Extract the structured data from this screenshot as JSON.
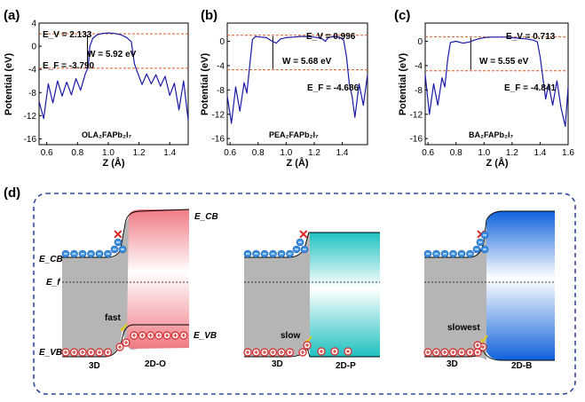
{
  "chart_data": [
    {
      "type": "line",
      "panel": "(a)",
      "xlabel": "Z (Å)",
      "ylabel": "Potential (eV)",
      "xlim": [
        0.55,
        1.52
      ],
      "ylim": [
        -17,
        4
      ],
      "xticks": [
        "0.6",
        "0.8",
        "1.0",
        "1.2",
        "1.4"
      ],
      "yticks": [
        "4",
        "0",
        "-4",
        "-8",
        "-12",
        "-16"
      ],
      "material": "OLA₂FAPb₂I₇",
      "ev_label": "E_V = 2.133",
      "ef_label": "E_F = -3.790",
      "w_label": "W = 5.92 eV",
      "ev": 2.133,
      "ef": -3.79,
      "w_x": 0.865,
      "x": [
        0.55,
        0.58,
        0.61,
        0.64,
        0.67,
        0.7,
        0.73,
        0.76,
        0.79,
        0.82,
        0.85,
        0.87,
        0.88,
        0.9,
        0.93,
        0.96,
        1.0,
        1.04,
        1.08,
        1.12,
        1.15,
        1.17,
        1.19,
        1.22,
        1.25,
        1.28,
        1.31,
        1.34,
        1.37,
        1.4,
        1.43,
        1.46,
        1.49,
        1.52
      ],
      "y": [
        -9.5,
        -12.5,
        -6.5,
        -9.8,
        -6.0,
        -8.6,
        -6.2,
        -8.4,
        -5.6,
        -7.6,
        -4.8,
        -3.6,
        0.0,
        1.4,
        2.0,
        2.2,
        2.3,
        2.2,
        2.0,
        1.5,
        0.8,
        -3.0,
        -4.5,
        -6.6,
        -4.8,
        -6.5,
        -4.9,
        -6.9,
        -5.2,
        -8.5,
        -6.4,
        -11.0,
        -6.0,
        -12.8
      ]
    },
    {
      "type": "line",
      "panel": "(b)",
      "xlabel": "Z (Å)",
      "ylabel": "Potential (eV)",
      "xlim": [
        0.58,
        1.58
      ],
      "ylim": [
        -17,
        3
      ],
      "xticks": [
        "0.6",
        "0.8",
        "1.0",
        "1.2",
        "1.4"
      ],
      "yticks": [
        "0",
        "-4",
        "-8",
        "-12",
        "-16"
      ],
      "material": "PEA₂FAPb₂I₇",
      "ev_label": "E_V = 0.996",
      "ef_label": "E_F = -4.686",
      "w_label": "W = 5.68 eV",
      "ev": 0.996,
      "ef": -4.686,
      "w_x": 0.905,
      "x": [
        0.58,
        0.61,
        0.64,
        0.67,
        0.7,
        0.72,
        0.74,
        0.76,
        0.78,
        0.82,
        0.86,
        0.9,
        0.93,
        0.96,
        1.0,
        1.05,
        1.1,
        1.15,
        1.2,
        1.25,
        1.28,
        1.3,
        1.34,
        1.38,
        1.41,
        1.43,
        1.45,
        1.47,
        1.49,
        1.52,
        1.55,
        1.58
      ],
      "y": [
        -9.0,
        -13.5,
        -7.5,
        -11.5,
        -6.8,
        -8.5,
        -4.0,
        0.3,
        0.8,
        0.7,
        0.6,
        0.0,
        -0.3,
        0.4,
        0.6,
        0.7,
        0.8,
        0.8,
        0.7,
        0.5,
        0.0,
        0.6,
        0.8,
        0.7,
        0.2,
        -2.5,
        -7.0,
        -9.0,
        -12.5,
        -7.0,
        -10.5,
        -5.5
      ]
    },
    {
      "type": "line",
      "panel": "(c)",
      "xlabel": "Z (Å)",
      "ylabel": "Potential (eV)",
      "xlim": [
        0.58,
        1.6
      ],
      "ylim": [
        -17,
        3
      ],
      "xticks": [
        "0.6",
        "0.8",
        "1.0",
        "1.2",
        "1.4",
        "1.6"
      ],
      "yticks": [
        "0",
        "-4",
        "-8",
        "-12",
        "-16"
      ],
      "material": "BA₂FAPb₂I₇",
      "ev_label": "E_V = 0.713",
      "ef_label": "E_F = -4.841",
      "w_label": "W = 5.55 eV",
      "ev": 0.713,
      "ef": -4.841,
      "w_x": 0.905,
      "x": [
        0.58,
        0.61,
        0.64,
        0.67,
        0.7,
        0.72,
        0.74,
        0.76,
        0.8,
        0.85,
        0.9,
        0.93,
        0.96,
        1.0,
        1.05,
        1.1,
        1.15,
        1.2,
        1.25,
        1.3,
        1.35,
        1.38,
        1.4,
        1.42,
        1.44,
        1.46,
        1.49,
        1.52,
        1.55,
        1.58,
        1.6
      ],
      "y": [
        -5.5,
        -12.0,
        -7.0,
        -10.5,
        -6.0,
        -7.5,
        -3.0,
        -0.2,
        0.0,
        -0.3,
        -0.1,
        0.2,
        0.4,
        0.6,
        0.7,
        0.7,
        0.7,
        0.6,
        0.5,
        0.4,
        0.2,
        -0.1,
        -2.5,
        -6.0,
        -9.5,
        -7.0,
        -10.5,
        -6.5,
        -11.0,
        -14.0,
        -7.5
      ]
    }
  ],
  "panel_d": {
    "label": "(d)",
    "diagrams": [
      {
        "material": "2D-O",
        "base": "3D",
        "speed": "fast",
        "cross": "✕",
        "check": "✓",
        "ecb": "E_CB",
        "evb": "E_VB",
        "ef": "E_f",
        "color": "#f28b90"
      },
      {
        "material": "2D-P",
        "base": "3D",
        "speed": "slow",
        "cross": "✕",
        "check": "✓",
        "color": "#2ec4c4"
      },
      {
        "material": "2D-B",
        "base": "3D",
        "speed": "slowest",
        "cross": "✕",
        "check": "✓",
        "color": "#1d6fe0"
      }
    ]
  },
  "colors": {
    "line": "#1a1aa8",
    "dash": "#e05a20",
    "electron": "#3a8ee0",
    "hole": "#d8383a",
    "frame": "#2e4aa0",
    "cross": "#e02020",
    "check": "#e8d000"
  }
}
